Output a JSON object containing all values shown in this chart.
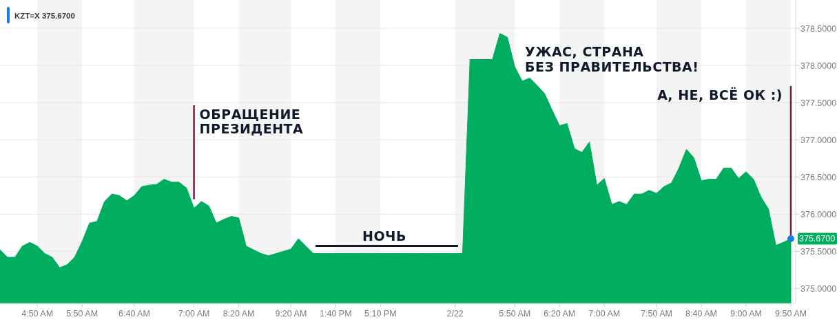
{
  "chart_data": {
    "type": "area",
    "title": "KZT=X 375.6700",
    "categories": [
      null,
      null,
      null,
      null,
      null,
      "4:50 AM",
      null,
      null,
      null,
      null,
      null,
      "5:50 AM",
      null,
      null,
      null,
      null,
      null,
      null,
      "6:40 AM",
      null,
      null,
      null,
      null,
      null,
      null,
      null,
      "7:00 AM",
      null,
      null,
      null,
      null,
      null,
      "8:20 AM",
      null,
      null,
      null,
      null,
      null,
      null,
      "9:20 AM",
      null,
      null,
      null,
      null,
      null,
      "1:40 PM",
      null,
      null,
      null,
      null,
      null,
      "5:10 PM",
      null,
      null,
      null,
      null,
      null,
      null,
      null,
      null,
      null,
      "2/22",
      null,
      null,
      null,
      null,
      null,
      null,
      null,
      "5:50 AM",
      null,
      null,
      null,
      null,
      null,
      "6:20 AM",
      null,
      null,
      null,
      null,
      null,
      "7:00 AM",
      null,
      null,
      null,
      null,
      null,
      null,
      "7:50 AM",
      null,
      null,
      null,
      null,
      null,
      "8:40 AM",
      null,
      null,
      null,
      null,
      null,
      "9:00 AM",
      null,
      null,
      null,
      null,
      null,
      "9:50 AM"
    ],
    "values": [
      375.52,
      375.42,
      375.42,
      375.57,
      375.62,
      375.57,
      375.47,
      375.42,
      375.28,
      375.32,
      375.42,
      375.63,
      375.88,
      375.9,
      376.17,
      376.27,
      376.25,
      376.18,
      376.25,
      376.37,
      376.39,
      376.4,
      376.47,
      376.43,
      376.43,
      376.35,
      376.08,
      376.17,
      376.11,
      375.88,
      375.93,
      375.97,
      375.95,
      375.57,
      375.52,
      375.47,
      375.44,
      375.47,
      375.5,
      375.53,
      375.67,
      375.57,
      375.47,
      375.47,
      375.47,
      375.47,
      375.47,
      375.47,
      375.47,
      375.47,
      375.47,
      375.47,
      375.47,
      375.47,
      375.47,
      375.47,
      375.47,
      375.47,
      375.47,
      375.47,
      375.47,
      375.47,
      375.47,
      378.08,
      378.08,
      378.08,
      378.08,
      378.43,
      378.38,
      377.98,
      377.79,
      377.83,
      377.73,
      377.62,
      377.4,
      377.19,
      377.22,
      376.88,
      376.83,
      376.97,
      376.39,
      376.48,
      376.13,
      376.17,
      376.13,
      376.27,
      376.27,
      376.32,
      376.28,
      376.37,
      376.42,
      376.62,
      376.87,
      376.76,
      376.45,
      376.47,
      376.47,
      376.62,
      376.62,
      376.48,
      376.57,
      376.47,
      376.23,
      376.07,
      375.58,
      375.62,
      375.67
    ],
    "color": "#00ad5f",
    "ylim": [
      374.8,
      378.88
    ],
    "yticks": [
      {
        "value": 375,
        "label": "375.0000"
      },
      {
        "value": 375.5,
        "label": "375.5000"
      },
      {
        "value": 376,
        "label": "376.0000"
      },
      {
        "value": 376.5,
        "label": "376.5000"
      },
      {
        "value": 377,
        "label": "377.0000"
      },
      {
        "value": 377.5,
        "label": "377.5000"
      },
      {
        "value": 378,
        "label": "378.0000"
      },
      {
        "value": 378.5,
        "label": "378.5000"
      }
    ],
    "grid": true,
    "annotations": [
      {
        "text": "ОБРАЩЕНИЕ\nПРЕЗИДЕНТА",
        "x": "7:00 AM",
        "y": 376.2
      },
      "УЖАС, СТРАНА\nБЕЗ ПРАВИТЕЛЬСТВА!",
      {
        "text": "А, НЕ, ВСЁ ОК :)",
        "x": "9:50 AM",
        "y": 375.67
      },
      "НОЧЬ",
      "375.6700"
    ]
  }
}
